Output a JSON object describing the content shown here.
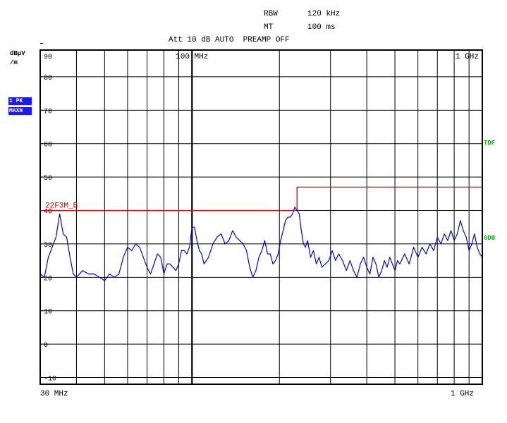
{
  "header": {
    "rbw_label": "RBW",
    "rbw_value": "120 kHz",
    "mt_label": "MT",
    "mt_value": "100 ms",
    "att_line": "Att 10 dB AUTO  PREAMP OFF"
  },
  "unit_line1": "dBµV",
  "unit_line2": "/m",
  "trace_badge_1": "1 PK",
  "trace_badge_2": "MAXH",
  "side_label_tdf": "TDF",
  "side_label_6db": "6DB",
  "x_start_label": "30 MHz",
  "x_end_label": "1 GHz",
  "colors": {
    "trace": "#0000ff",
    "limit": "#e00000",
    "grid": "#000000",
    "badge_bg": "#1a1aff",
    "side_labels": "#00c000"
  },
  "chart_data": {
    "type": "line",
    "x_scale": "log",
    "xlim": [
      30,
      1000
    ],
    "ylim": [
      -15,
      90
    ],
    "y_ticks": [
      90,
      80,
      70,
      60,
      50,
      40,
      30,
      20,
      10,
      0,
      -10
    ],
    "x_top_labels": [
      {
        "freq": 100,
        "text": "100 MHz"
      },
      {
        "freq": 1000,
        "text": "1 GHz"
      }
    ],
    "grid": true,
    "limit_line": {
      "name": "22F3M_B",
      "points": [
        [
          30,
          40
        ],
        [
          230,
          40
        ],
        [
          230,
          47
        ],
        [
          1000,
          47
        ]
      ]
    },
    "series": [
      {
        "points": [
          [
            30,
            21
          ],
          [
            31,
            20
          ],
          [
            32,
            26
          ],
          [
            33,
            29
          ],
          [
            34,
            32
          ],
          [
            35,
            39
          ],
          [
            36,
            33
          ],
          [
            37,
            32
          ],
          [
            38,
            26
          ],
          [
            39,
            21
          ],
          [
            40,
            20
          ],
          [
            42,
            22
          ],
          [
            44,
            21
          ],
          [
            46,
            21
          ],
          [
            48,
            20
          ],
          [
            50,
            19
          ],
          [
            52,
            21
          ],
          [
            54,
            20
          ],
          [
            56,
            21
          ],
          [
            58,
            26
          ],
          [
            60,
            29
          ],
          [
            62,
            28
          ],
          [
            64,
            30
          ],
          [
            66,
            29
          ],
          [
            68,
            26
          ],
          [
            70,
            23
          ],
          [
            72,
            21
          ],
          [
            74,
            24
          ],
          [
            76,
            27
          ],
          [
            78,
            26
          ],
          [
            80,
            21
          ],
          [
            82,
            24
          ],
          [
            84,
            24
          ],
          [
            86,
            23
          ],
          [
            88,
            22
          ],
          [
            90,
            24
          ],
          [
            92,
            28
          ],
          [
            94,
            28
          ],
          [
            96,
            27
          ],
          [
            98,
            29
          ],
          [
            100,
            35
          ],
          [
            102,
            35
          ],
          [
            104,
            31
          ],
          [
            106,
            28
          ],
          [
            108,
            27
          ],
          [
            110,
            24
          ],
          [
            114,
            26
          ],
          [
            118,
            30
          ],
          [
            122,
            32
          ],
          [
            126,
            33
          ],
          [
            130,
            30
          ],
          [
            134,
            31
          ],
          [
            138,
            34
          ],
          [
            142,
            32
          ],
          [
            146,
            31
          ],
          [
            150,
            30
          ],
          [
            154,
            28
          ],
          [
            158,
            23
          ],
          [
            162,
            20
          ],
          [
            166,
            22
          ],
          [
            170,
            26
          ],
          [
            174,
            28
          ],
          [
            178,
            31
          ],
          [
            182,
            27
          ],
          [
            186,
            27
          ],
          [
            190,
            24
          ],
          [
            194,
            25
          ],
          [
            198,
            27
          ],
          [
            202,
            31
          ],
          [
            206,
            34
          ],
          [
            210,
            37
          ],
          [
            214,
            38
          ],
          [
            218,
            38
          ],
          [
            222,
            39
          ],
          [
            226,
            41
          ],
          [
            230,
            40
          ],
          [
            234,
            39
          ],
          [
            238,
            34
          ],
          [
            242,
            30
          ],
          [
            246,
            29
          ],
          [
            250,
            31
          ],
          [
            256,
            26
          ],
          [
            262,
            28
          ],
          [
            268,
            24
          ],
          [
            274,
            26
          ],
          [
            280,
            23
          ],
          [
            288,
            24
          ],
          [
            296,
            25
          ],
          [
            304,
            28
          ],
          [
            312,
            25
          ],
          [
            320,
            27
          ],
          [
            330,
            25
          ],
          [
            340,
            22
          ],
          [
            350,
            25
          ],
          [
            360,
            22
          ],
          [
            370,
            20
          ],
          [
            380,
            24
          ],
          [
            390,
            26
          ],
          [
            400,
            23
          ],
          [
            410,
            21
          ],
          [
            420,
            26
          ],
          [
            430,
            24
          ],
          [
            440,
            20
          ],
          [
            450,
            22
          ],
          [
            460,
            25
          ],
          [
            470,
            23
          ],
          [
            480,
            26
          ],
          [
            490,
            24
          ],
          [
            500,
            22
          ],
          [
            510,
            25
          ],
          [
            520,
            24
          ],
          [
            540,
            27
          ],
          [
            560,
            24
          ],
          [
            580,
            29
          ],
          [
            600,
            26
          ],
          [
            620,
            29
          ],
          [
            640,
            27
          ],
          [
            660,
            30
          ],
          [
            680,
            28
          ],
          [
            700,
            32
          ],
          [
            720,
            30
          ],
          [
            740,
            33
          ],
          [
            760,
            31
          ],
          [
            780,
            34
          ],
          [
            800,
            31
          ],
          [
            820,
            33
          ],
          [
            840,
            37
          ],
          [
            860,
            34
          ],
          [
            880,
            32
          ],
          [
            900,
            28
          ],
          [
            920,
            30
          ],
          [
            940,
            33
          ],
          [
            960,
            29
          ],
          [
            980,
            27
          ],
          [
            1000,
            26
          ]
        ]
      }
    ]
  }
}
